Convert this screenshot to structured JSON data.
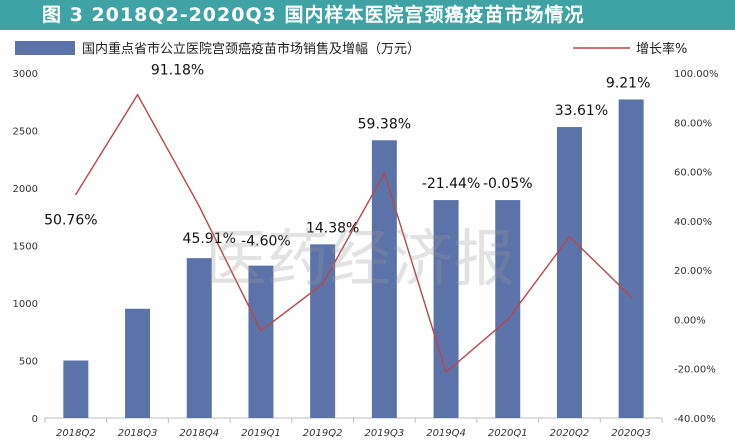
{
  "title": "图 3   2018Q2-2020Q3 国内样本医院宫颈癌疫苗市场情况",
  "watermark": "医药经济报",
  "colors": {
    "title_bg": "#3fa3a6",
    "bar": "#5b73a9",
    "line": "#b8474a",
    "axis": "#bfbfbf"
  },
  "chart_data": {
    "type": "bar",
    "title": "图 3   2018Q2-2020Q3 国内样本医院宫颈癌疫苗市场情况",
    "categories": [
      "2018Q2",
      "2018Q3",
      "2018Q4",
      "2019Q1",
      "2019Q2",
      "2019Q3",
      "2019Q4",
      "2020Q1",
      "2020Q2",
      "2020Q3"
    ],
    "series": [
      {
        "name": "国内重点省市公立医院宫颈癌疫苗市场销售及增幅（万元）",
        "type": "bar",
        "axis": "left",
        "values": [
          500,
          950,
          1390,
          1325,
          1510,
          2415,
          1895,
          1895,
          2530,
          2770
        ]
      },
      {
        "name": "增长率%",
        "type": "line",
        "axis": "right",
        "values": [
          50.76,
          91.18,
          45.91,
          -4.6,
          14.38,
          59.38,
          -21.44,
          -0.05,
          33.61,
          9.21
        ]
      }
    ],
    "data_labels": [
      "50.76%",
      "91.18%",
      "45.91%",
      "-4.60%",
      "14.38%",
      "59.38%",
      "-21.44%",
      "-0.05%",
      "33.61%",
      "9.21%"
    ],
    "y_left": {
      "range": [
        0,
        3000
      ],
      "ticks": [
        "0",
        "500",
        "1000",
        "1500",
        "2000",
        "2500",
        "3000"
      ]
    },
    "y_right": {
      "range": [
        -40,
        100
      ],
      "ticks": [
        "-40.00%",
        "-20.00%",
        "0.00%",
        "20.00%",
        "40.00%",
        "60.00%",
        "80.00%",
        "100.00%"
      ]
    },
    "legend": "top",
    "grid": false
  }
}
